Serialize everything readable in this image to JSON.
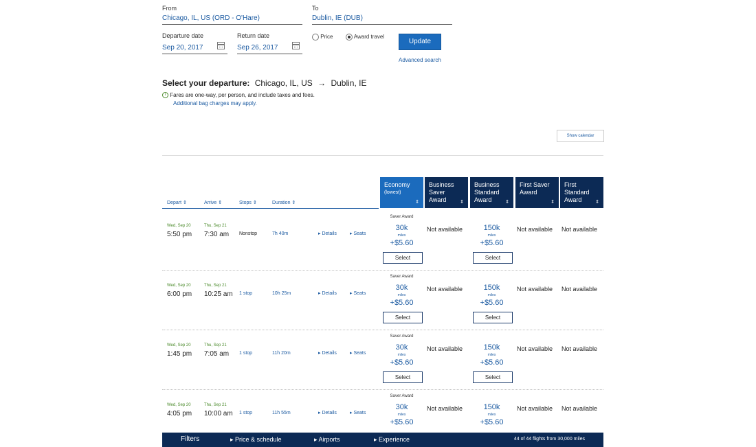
{
  "search": {
    "from_label": "From",
    "from_value": "Chicago, IL, US (ORD - O'Hare)",
    "to_label": "To",
    "to_value": "Dublin, IE (DUB)",
    "depart_label": "Departure date",
    "depart_value": "Sep 20, 2017",
    "return_label": "Return date",
    "return_value": "Sep 26, 2017",
    "price_option": "Price",
    "award_option": "Award travel",
    "update_label": "Update",
    "advanced_label": "Advanced search"
  },
  "heading": {
    "prefix": "Select your departure:",
    "origin": "Chicago, IL, US",
    "arrow": "→",
    "destination": "Dublin, IE",
    "info_text": "Fares are one-way, per person, and include taxes and fees.",
    "bag_link": "Additional bag charges may apply.",
    "show_calendar": "Show calendar"
  },
  "columns": {
    "depart": "Depart ⇕",
    "arrive": "Arrive ⇕",
    "stops": "Stops ⇕",
    "duration": "Duration ⇕",
    "cabins": [
      {
        "line1": "Economy",
        "line2": "(lowest)",
        "line3": "",
        "color": "#1b6bbd",
        "sort": "⇕"
      },
      {
        "line1": "Business",
        "line2": "Saver",
        "line3": "Award",
        "color": "#0c2a55",
        "sort": "⇕"
      },
      {
        "line1": "Business",
        "line2": "Standard",
        "line3": "Award",
        "color": "#0c2a55",
        "sort": "⇕"
      },
      {
        "line1": "First Saver",
        "line2": "Award",
        "line3": "",
        "color": "#0c2a55",
        "sort": "⇕"
      },
      {
        "line1": "First",
        "line2": "Standard",
        "line3": "Award",
        "color": "#0c2a55",
        "sort": "⇕"
      }
    ]
  },
  "flights": [
    {
      "dep_date": "Wed, Sep 20",
      "dep_time": "5:50 pm",
      "arr_date": "Thu, Sep 21",
      "arr_time": "7:30 am",
      "stops": "Nonstop",
      "duration": "7h 40m",
      "details": "▸ Details",
      "seats": "▸ Seats",
      "saver_label": "Saver Award",
      "eco_miles": "30k",
      "eco_unit": "miles",
      "eco_tax": "+$5.60",
      "select": "Select",
      "bs": "Not available",
      "bstd_miles": "150k",
      "bstd_unit": "miles",
      "bstd_tax": "+$5.60",
      "fs": "Not available",
      "fstd": "Not available"
    },
    {
      "dep_date": "Wed, Sep 20",
      "dep_time": "6:00 pm",
      "arr_date": "Thu, Sep 21",
      "arr_time": "10:25 am",
      "stops": "1 stop",
      "duration": "10h 25m",
      "details": "▸ Details",
      "seats": "▸ Seats",
      "saver_label": "Saver Award",
      "eco_miles": "30k",
      "eco_unit": "miles",
      "eco_tax": "+$5.60",
      "select": "Select",
      "bs": "Not available",
      "bstd_miles": "150k",
      "bstd_unit": "miles",
      "bstd_tax": "+$5.60",
      "fs": "Not available",
      "fstd": "Not available"
    },
    {
      "dep_date": "Wed, Sep 20",
      "dep_time": "1:45 pm",
      "arr_date": "Thu, Sep 21",
      "arr_time": "7:05 am",
      "stops": "1 stop",
      "duration": "11h 20m",
      "details": "▸ Details",
      "seats": "▸ Seats",
      "saver_label": "Saver Award",
      "eco_miles": "30k",
      "eco_unit": "miles",
      "eco_tax": "+$5.60",
      "select": "Select",
      "bs": "Not available",
      "bstd_miles": "150k",
      "bstd_unit": "miles",
      "bstd_tax": "+$5.60",
      "fs": "Not available",
      "fstd": "Not available"
    },
    {
      "dep_date": "Wed, Sep 20",
      "dep_time": "4:05 pm",
      "arr_date": "Thu, Sep 21",
      "arr_time": "10:00 am",
      "stops": "1 stop",
      "duration": "11h 55m",
      "details": "▸ Details",
      "seats": "▸ Seats",
      "saver_label": "Saver Award",
      "eco_miles": "30k",
      "eco_unit": "miles",
      "eco_tax": "+$5.60",
      "select": "Select",
      "bs": "Not available",
      "bstd_miles": "150k",
      "bstd_unit": "miles",
      "bstd_tax": "+$5.60",
      "fs": "Not available",
      "fstd": "Not available"
    }
  ],
  "footer": {
    "filters": "Filters",
    "price_schedule": "▸ Price & schedule",
    "airports": "▸ Airports",
    "experience": "▸ Experience",
    "summary": "44 of 44 flights from 30,000 miles"
  },
  "colors": {
    "brand_blue": "#1b6bbd",
    "navy": "#0c2a55",
    "link": "#1b5aa1"
  }
}
